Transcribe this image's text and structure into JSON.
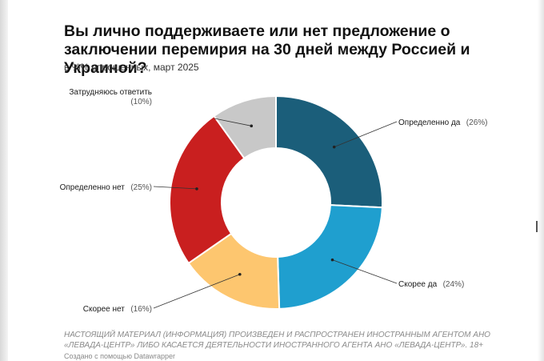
{
  "chart_data": {
    "type": "pie",
    "title": "Вы лично поддерживаете или нет предложение о заключении перемирия на 30 дней между Россией и Украиной?",
    "subtitle": "в %% опрошенных, март 2025",
    "slices": [
      {
        "label": "Определенно да",
        "pct_label": "(26%)",
        "value": 26,
        "color": "#1b5e7a"
      },
      {
        "label": "Скорее да",
        "pct_label": "(24%)",
        "value": 24,
        "color": "#1f9fcf"
      },
      {
        "label": "Скорее нет",
        "pct_label": "(16%)",
        "value": 16,
        "color": "#fdc66f"
      },
      {
        "label": "Определенно нет",
        "pct_label": "(25%)",
        "value": 25,
        "color": "#c91f1f"
      },
      {
        "label": "Затрудняюсь ответить",
        "pct_label": "(10%)",
        "value": 10,
        "color": "#c8c8c8"
      }
    ]
  },
  "footer": {
    "notice": "НАСТОЯЩИЙ МАТЕРИАЛ (ИНФОРМАЦИЯ) ПРОИЗВЕДЕН И РАСПРОСТРАНЕН ИНОСТРАННЫМ АГЕНТОМ АНО «ЛЕВАДА-ЦЕНТР» ЛИБО КАСАЕТСЯ ДЕЯТЕЛЬНОСТИ ИНОСТРАННОГО АГЕНТА АНО «ЛЕВАДА-ЦЕНТР». 18+",
    "credit": "Создано с помощью Datawrapper"
  }
}
